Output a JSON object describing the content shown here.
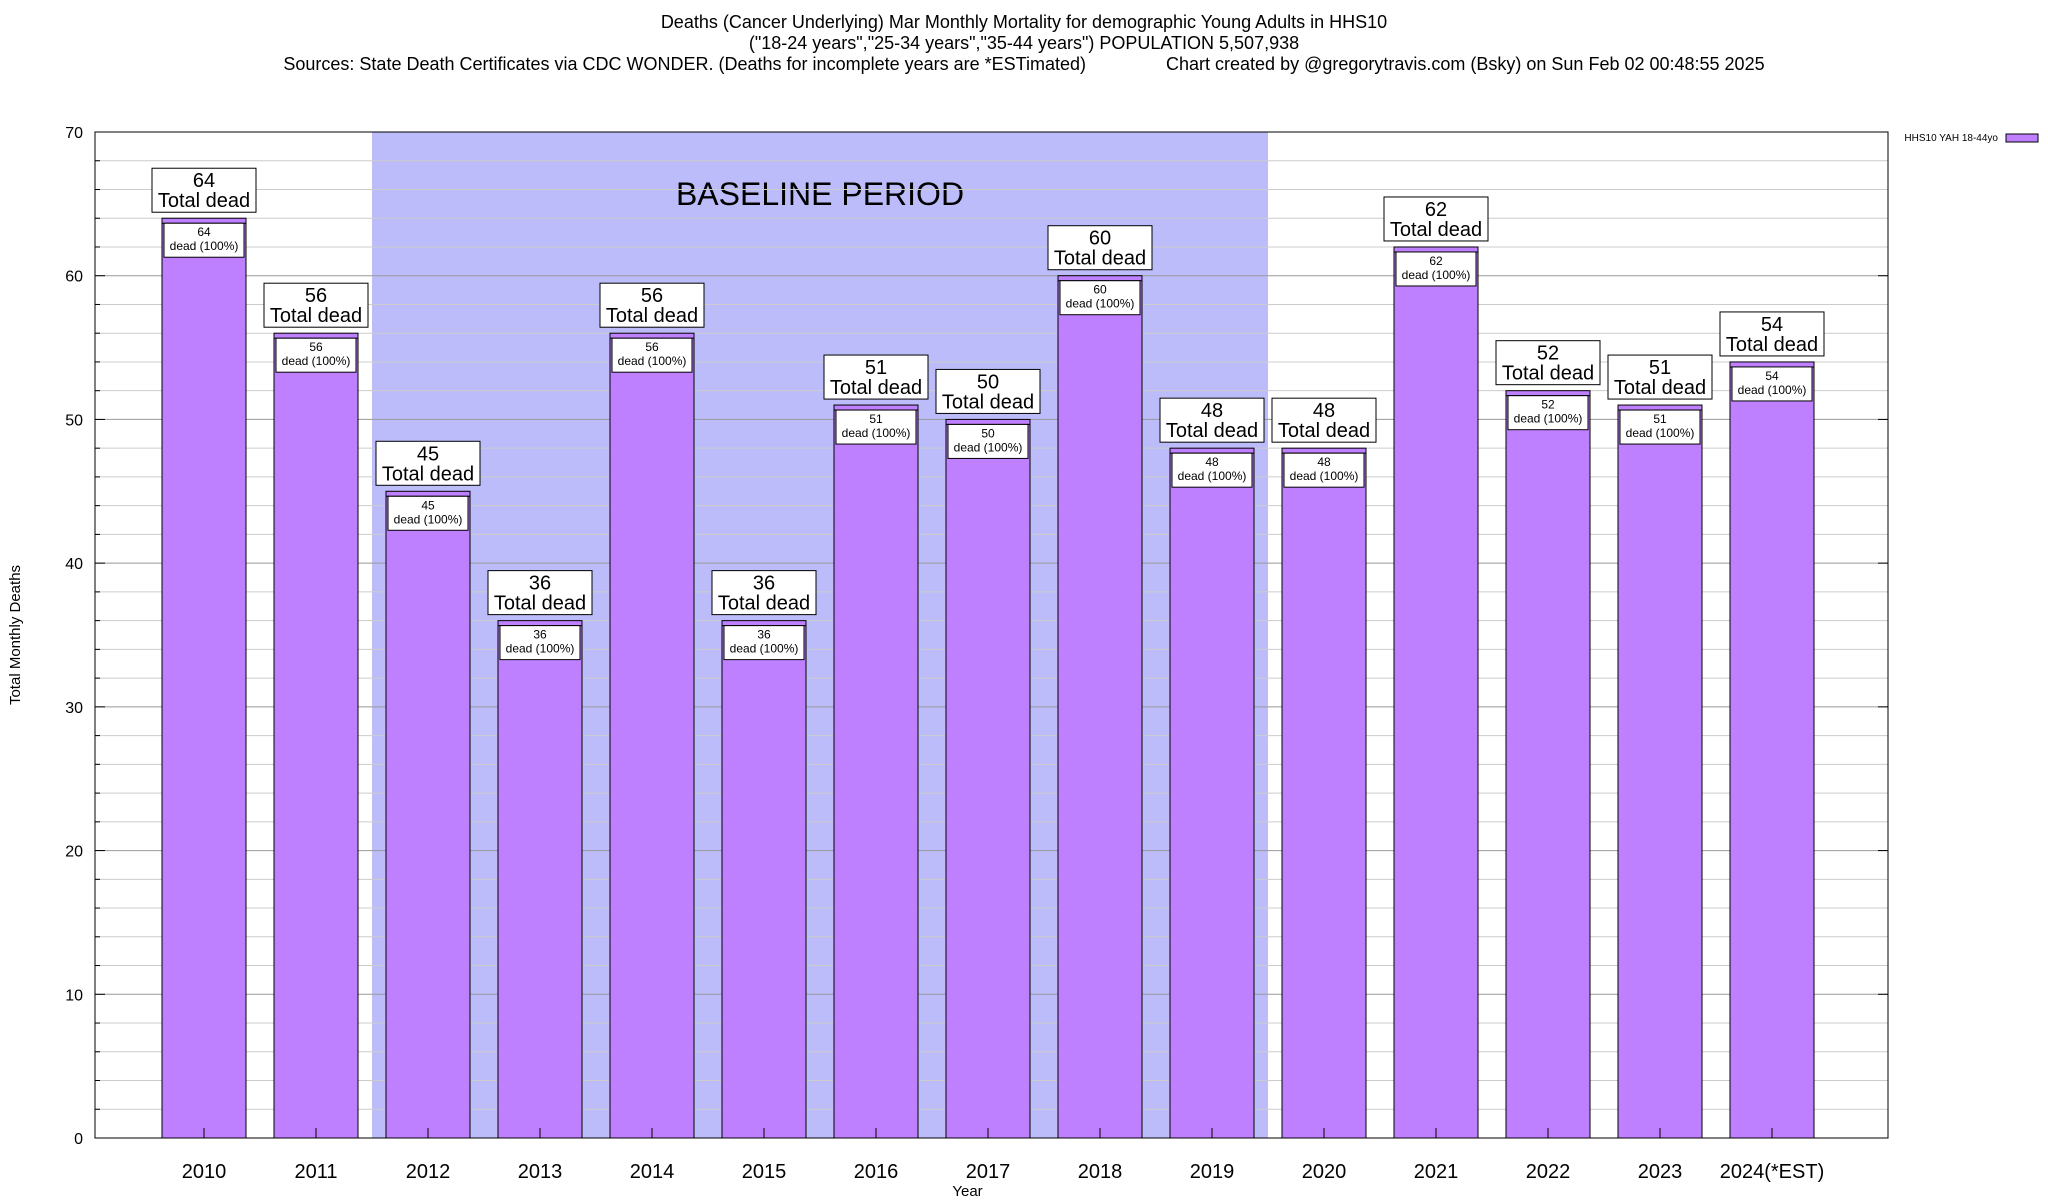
{
  "header": {
    "title_line1": "Deaths (Cancer Underlying) Mar Monthly Mortality for demographic Young Adults in HHS10",
    "title_line2": "(\"18-24 years\",\"25-34 years\",\"35-44 years\") POPULATION 5,507,938",
    "title_line3": "Sources: State Death Certificates via CDC WONDER. (Deaths for incomplete years are *ESTimated)                Chart created by @gregorytravis.com (Bsky) on Sun Feb 02 00:48:55 2025"
  },
  "chart_data": {
    "type": "bar",
    "title": "Deaths (Cancer Underlying) Mar Monthly Mortality for demographic Young Adults in HHS10",
    "xlabel": "Year",
    "ylabel": "Total Monthly Deaths",
    "ylim": [
      0,
      70
    ],
    "yticks": [
      0,
      10,
      20,
      30,
      40,
      50,
      60,
      70
    ],
    "grid": true,
    "legend_position": "top-right",
    "categories": [
      "2010",
      "2011",
      "2012",
      "2013",
      "2014",
      "2015",
      "2016",
      "2017",
      "2018",
      "2019",
      "2020",
      "2021",
      "2022",
      "2023",
      "2024(*EST)"
    ],
    "series": [
      {
        "name": "HHS10 YAH 18-44yo",
        "color": "#bf80ff",
        "values": [
          64,
          56,
          45,
          36,
          56,
          36,
          51,
          50,
          60,
          48,
          48,
          62,
          52,
          51,
          54
        ]
      }
    ],
    "label_total_text": "Total dead",
    "label_inner_text": "dead (100%)",
    "baseline": {
      "label": "BASELINE PERIOD",
      "start": "2012",
      "end": "2019",
      "color": "#bcbcfa"
    }
  }
}
